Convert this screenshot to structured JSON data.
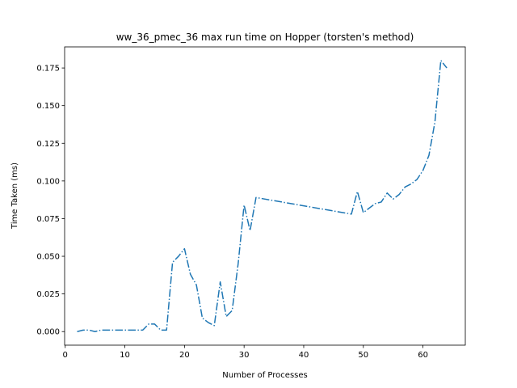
{
  "chart_data": {
    "type": "line",
    "title": "ww_36_pmec_36 max run time on Hopper (torsten's method)",
    "xlabel": "Number of Processes",
    "ylabel": "Time Taken (ms)",
    "xlim": [
      -0.1,
      67.1
    ],
    "ylim": [
      -0.009,
      0.189
    ],
    "xticks": [
      0,
      10,
      20,
      30,
      40,
      50,
      60
    ],
    "xtick_labels": [
      "0",
      "10",
      "20",
      "30",
      "40",
      "50",
      "60"
    ],
    "yticks": [
      0.0,
      0.025,
      0.05,
      0.075,
      0.1,
      0.125,
      0.15,
      0.175
    ],
    "ytick_labels": [
      "0.000",
      "0.025",
      "0.050",
      "0.075",
      "0.100",
      "0.125",
      "0.150",
      "0.175"
    ],
    "grid": false,
    "line_style": "dashdot",
    "line_color": "#1f77b4",
    "series": [
      {
        "x": [
          2,
          3,
          4,
          5,
          6,
          7,
          8,
          9,
          10,
          11,
          12,
          13,
          14,
          15,
          16,
          17,
          18,
          19,
          20,
          21,
          22,
          23,
          24,
          25,
          26,
          27,
          28,
          29,
          30,
          31,
          32,
          48,
          49,
          50,
          51,
          52,
          53,
          54,
          55,
          56,
          57,
          58,
          59,
          60,
          61,
          62,
          63,
          64
        ],
        "y": [
          0.0,
          0.001,
          0.001,
          0.0,
          0.001,
          0.001,
          0.001,
          0.001,
          0.001,
          0.001,
          0.001,
          0.001,
          0.005,
          0.005,
          0.001,
          0.001,
          0.046,
          0.05,
          0.055,
          0.038,
          0.031,
          0.009,
          0.006,
          0.004,
          0.033,
          0.01,
          0.014,
          0.045,
          0.084,
          0.067,
          0.089,
          0.078,
          0.093,
          0.079,
          0.082,
          0.085,
          0.086,
          0.092,
          0.088,
          0.091,
          0.096,
          0.098,
          0.101,
          0.107,
          0.117,
          0.139,
          0.18,
          0.175
        ]
      }
    ]
  }
}
